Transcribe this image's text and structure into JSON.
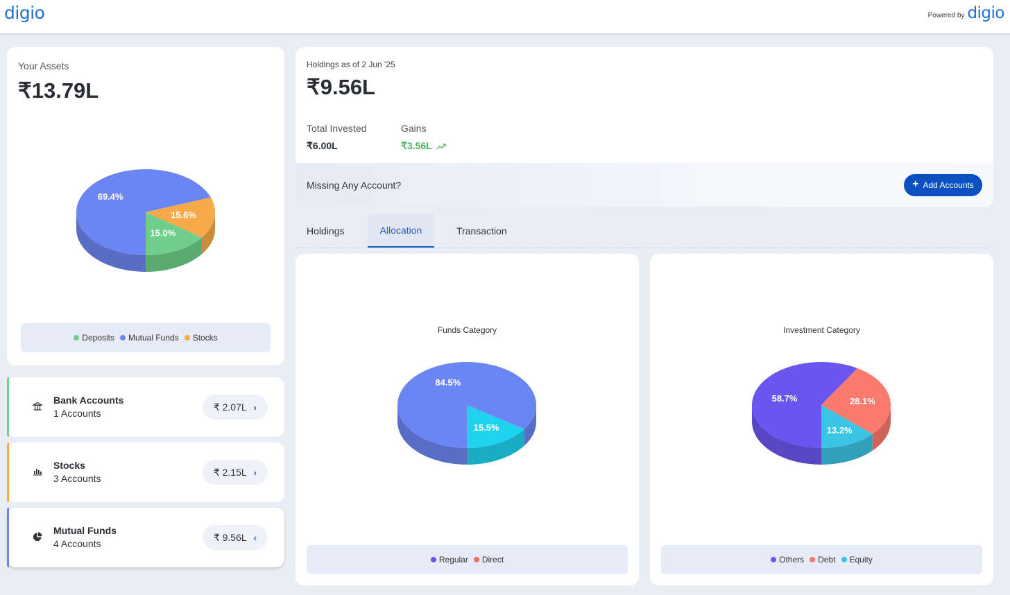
{
  "header": {
    "logo": "digio",
    "powered_by": "Powered by",
    "powered_logo": "digio"
  },
  "assets": {
    "label": "Your Assets",
    "value": "₹13.79L",
    "legend": [
      {
        "label": "Deposits",
        "color": "#6fcf8a"
      },
      {
        "label": "Mutual Funds",
        "color": "#6b85f2"
      },
      {
        "label": "Stocks",
        "color": "#f8aa4b"
      }
    ]
  },
  "accounts": [
    {
      "name": "Bank Accounts",
      "sub": "1 Accounts",
      "value": "₹ 2.07L",
      "chevron": "›",
      "accent": "#6fcf8a",
      "icon": "bank-icon"
    },
    {
      "name": "Stocks",
      "sub": "3 Accounts",
      "value": "₹ 2.15L",
      "chevron": "›",
      "accent": "#f8aa4b",
      "icon": "bar-chart-icon"
    },
    {
      "name": "Mutual Funds",
      "sub": "4 Accounts",
      "value": "₹ 9.56L",
      "chevron": "‹",
      "accent": "#6b85f2",
      "icon": "pie-chart-icon"
    }
  ],
  "holdings": {
    "as_of": "Holdings as of 2 Jun '25",
    "value": "₹9.56L",
    "total_invested_label": "Total Invested",
    "total_invested": "₹6.00L",
    "gains_label": "Gains",
    "gains": "₹3.56L",
    "missing_text": "Missing Any Account?",
    "add_button": "Add Accounts"
  },
  "tabs": [
    {
      "label": "Holdings",
      "active": false
    },
    {
      "label": "Allocation",
      "active": true
    },
    {
      "label": "Transaction",
      "active": false
    }
  ],
  "chart_data": [
    {
      "type": "pie",
      "categories": [
        "Mutual Funds",
        "Stocks",
        "Deposits"
      ],
      "values": [
        69.4,
        15.6,
        15.0
      ],
      "colors": [
        "#6b85f2",
        "#f8aa4b",
        "#6fcf8a"
      ],
      "labels": [
        "69.4%",
        "15.6%",
        "15.0%"
      ],
      "title": "",
      "legend": "bottom"
    },
    {
      "type": "pie",
      "title": "Funds Category",
      "categories": [
        "Regular",
        "Direct"
      ],
      "values": [
        84.5,
        15.5
      ],
      "colors": [
        "#6b85f2",
        "#1fd3ef"
      ],
      "labels": [
        "84.5%",
        "15.5%"
      ],
      "legend_colors": [
        "#6b55f0",
        "#fa6a6a"
      ],
      "legend": "bottom"
    },
    {
      "type": "pie",
      "title": "Investment Category",
      "categories": [
        "Others",
        "Debt",
        "Equity"
      ],
      "values": [
        58.7,
        28.1,
        13.2
      ],
      "colors": [
        "#6b55f0",
        "#fa7a6e",
        "#3cc4e4"
      ],
      "labels": [
        "58.7%",
        "28.1%",
        "13.2%"
      ],
      "legend": "bottom"
    }
  ]
}
